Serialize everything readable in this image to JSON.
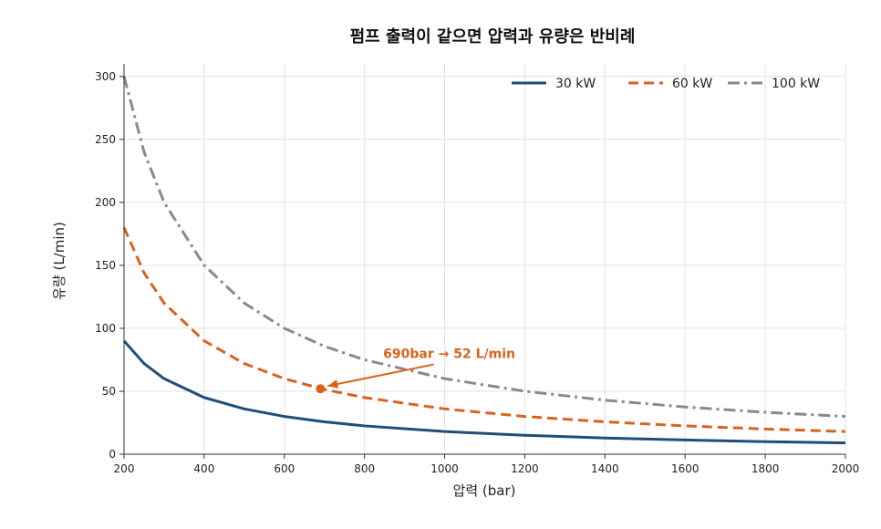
{
  "chart_data": {
    "type": "line",
    "title": "펌프 출력이 같으면 압력과 유량은 반비례",
    "xlabel": "압력 (bar)",
    "ylabel": "유량 (L/min)",
    "xlim": [
      200,
      2000
    ],
    "ylim": [
      0,
      310
    ],
    "xticks": [
      200,
      400,
      600,
      800,
      1000,
      1200,
      1400,
      1600,
      1800,
      2000
    ],
    "yticks": [
      0,
      50,
      100,
      150,
      200,
      250,
      300
    ],
    "grid": true,
    "legend_position": "top-right",
    "x": [
      200,
      250,
      300,
      400,
      500,
      600,
      700,
      800,
      1000,
      1200,
      1400,
      1600,
      1800,
      2000
    ],
    "series": [
      {
        "name": "30 kW",
        "color": "#1f4e79",
        "style": "solid",
        "values": [
          90,
          72,
          60,
          45,
          36,
          30,
          25.7,
          22.5,
          18,
          15,
          12.9,
          11.3,
          10,
          9
        ]
      },
      {
        "name": "60 kW",
        "color": "#d9631c",
        "style": "dashed",
        "values": [
          180,
          144,
          120,
          90,
          72,
          60,
          51.4,
          45,
          36,
          30,
          25.7,
          22.5,
          20,
          18
        ]
      },
      {
        "name": "100 kW",
        "color": "#8a8a8a",
        "style": "dashdot",
        "values": [
          300,
          240,
          200,
          150,
          120,
          100,
          85.7,
          75,
          60,
          50,
          42.9,
          37.5,
          33.3,
          30
        ]
      }
    ],
    "annotation": {
      "text": "690bar → 52 L/min",
      "point": [
        690,
        52
      ],
      "label_at": [
        1000,
        80
      ],
      "color": "#d9631c"
    }
  }
}
